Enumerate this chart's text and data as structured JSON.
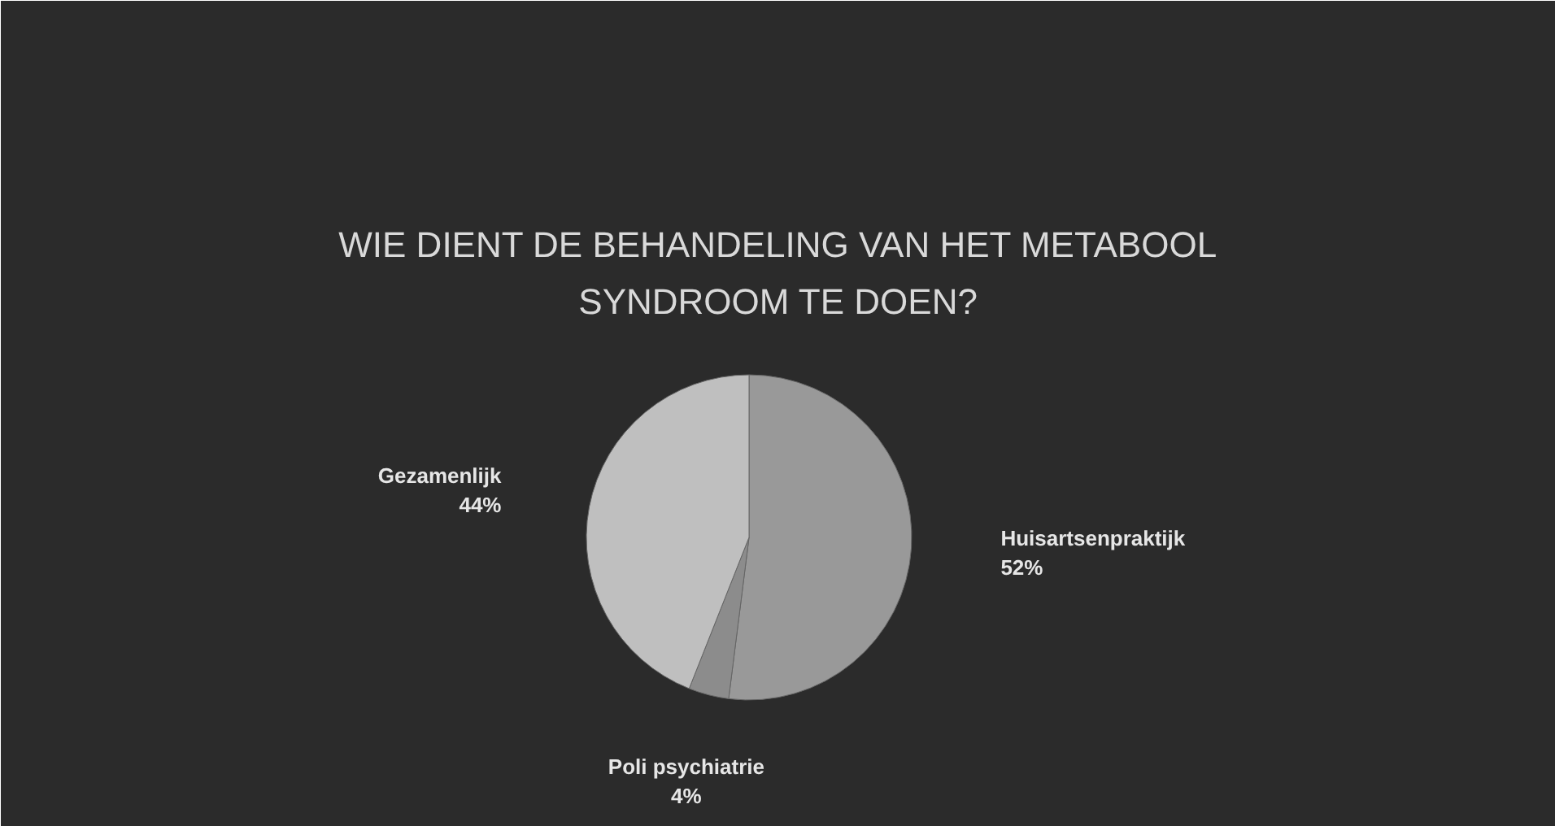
{
  "chart_data": {
    "type": "pie",
    "title": "WIE DIENT DE BEHANDELING VAN HET METABOOL SYNDROOM TE DOEN?",
    "categories": [
      "Huisartsenpraktijk",
      "Poli psychiatrie",
      "Gezamenlijk"
    ],
    "values": [
      52,
      4,
      44
    ],
    "colors": [
      "#999999",
      "#8c8c8c",
      "#bfbfbf"
    ],
    "value_labels": [
      "52%",
      "4%",
      "44%"
    ]
  }
}
